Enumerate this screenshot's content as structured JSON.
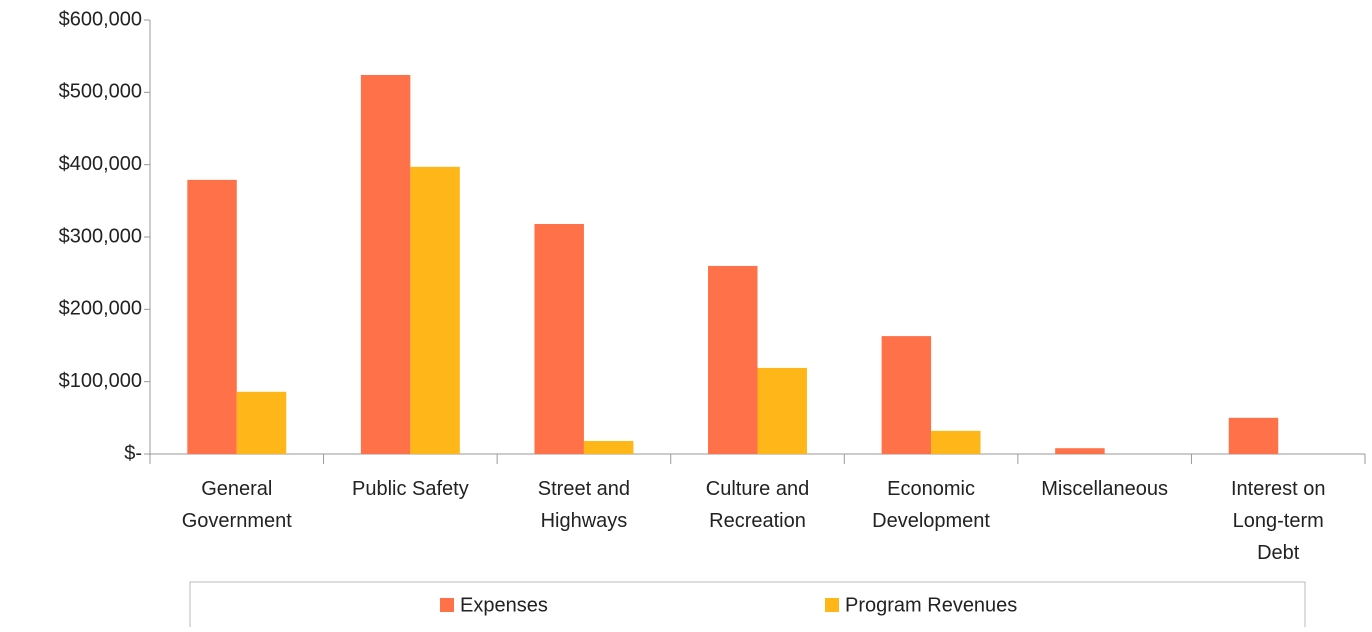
{
  "chart_data": {
    "type": "bar",
    "categories": [
      "General\nGovernment",
      "Public Safety",
      "Street and\nHighways",
      "Culture and\nRecreation",
      "Economic\nDevelopment",
      "Miscellaneous",
      "Interest on\nLong-term\nDebt"
    ],
    "series": [
      {
        "name": "Expenses",
        "color": "#ff7148",
        "values": [
          379000,
          524000,
          318000,
          260000,
          163000,
          8000,
          50000
        ]
      },
      {
        "name": "Program Revenues",
        "color": "#ffb619",
        "values": [
          86000,
          397000,
          18000,
          119000,
          32000,
          0,
          0
        ]
      }
    ],
    "ylim": [
      0,
      600000
    ],
    "yticks": [
      {
        "value": 0,
        "label": "$-"
      },
      {
        "value": 100000,
        "label": "$100,000"
      },
      {
        "value": 200000,
        "label": "$200,000"
      },
      {
        "value": 300000,
        "label": "$300,000"
      },
      {
        "value": 400000,
        "label": "$400,000"
      },
      {
        "value": 500000,
        "label": "$500,000"
      },
      {
        "value": 600000,
        "label": "$600,000"
      }
    ],
    "legend": "bottom"
  }
}
